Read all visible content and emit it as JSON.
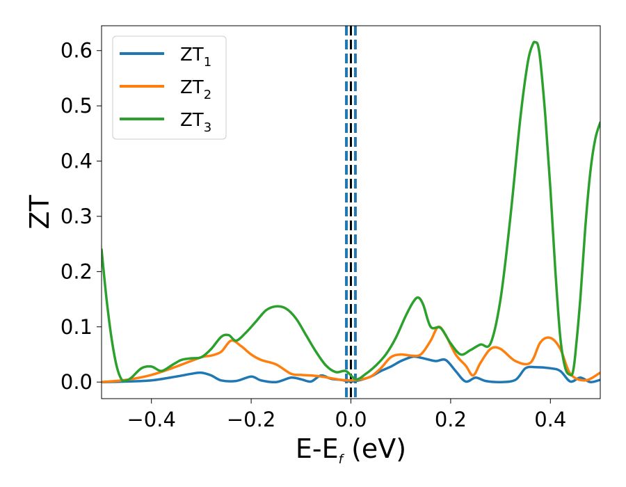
{
  "chart_data": {
    "type": "line",
    "title": "",
    "xlabel": {
      "main": "E-E",
      "sub": "f",
      "unit": " (eV)"
    },
    "ylabel": "ZT",
    "xlim": [
      -0.5,
      0.5
    ],
    "ylim": [
      -0.03,
      0.645
    ],
    "xticks": [
      -0.4,
      -0.2,
      0.0,
      0.2,
      0.4
    ],
    "xtick_labels": [
      "−0.4",
      "−0.2",
      "0.0",
      "0.2",
      "0.4"
    ],
    "yticks": [
      0.0,
      0.1,
      0.2,
      0.3,
      0.4,
      0.5,
      0.6
    ],
    "ytick_labels": [
      "0.0",
      "0.1",
      "0.2",
      "0.3",
      "0.4",
      "0.5",
      "0.6"
    ],
    "legend_position": "top-left",
    "vlines": [
      {
        "x": -0.009,
        "color": "#1f77b4",
        "style": "dashed"
      },
      {
        "x": 0.0,
        "color": "#000000",
        "style": "dashed"
      },
      {
        "x": 0.009,
        "color": "#1f77b4",
        "style": "dashed"
      }
    ],
    "series": [
      {
        "name": "ZT",
        "sub": "1",
        "color": "#1f77b4",
        "x": [
          -0.5,
          -0.45,
          -0.4,
          -0.35,
          -0.32,
          -0.3,
          -0.28,
          -0.26,
          -0.23,
          -0.2,
          -0.18,
          -0.15,
          -0.12,
          -0.1,
          -0.08,
          -0.06,
          -0.04,
          -0.02,
          0.0,
          0.02,
          0.04,
          0.06,
          0.08,
          0.1,
          0.12,
          0.13,
          0.15,
          0.17,
          0.19,
          0.21,
          0.23,
          0.25,
          0.27,
          0.3,
          0.33,
          0.35,
          0.37,
          0.4,
          0.42,
          0.44,
          0.46,
          0.48,
          0.5
        ],
        "y": [
          0.0,
          0.001,
          0.003,
          0.01,
          0.015,
          0.017,
          0.012,
          0.003,
          0.002,
          0.01,
          0.003,
          0.0,
          0.008,
          0.005,
          0.001,
          0.012,
          0.006,
          0.004,
          0.001,
          0.004,
          0.01,
          0.02,
          0.028,
          0.038,
          0.045,
          0.046,
          0.042,
          0.038,
          0.04,
          0.02,
          0.001,
          0.008,
          0.002,
          0.0,
          0.004,
          0.025,
          0.027,
          0.025,
          0.02,
          0.001,
          0.008,
          0.0,
          0.004
        ]
      },
      {
        "name": "ZT",
        "sub": "2",
        "color": "#ff7f0e",
        "x": [
          -0.5,
          -0.45,
          -0.4,
          -0.35,
          -0.3,
          -0.28,
          -0.26,
          -0.24,
          -0.22,
          -0.2,
          -0.18,
          -0.15,
          -0.12,
          -0.1,
          -0.08,
          -0.06,
          -0.04,
          -0.02,
          0.0,
          0.02,
          0.04,
          0.06,
          0.08,
          0.1,
          0.12,
          0.14,
          0.16,
          0.175,
          0.19,
          0.21,
          0.23,
          0.245,
          0.26,
          0.28,
          0.3,
          0.33,
          0.36,
          0.38,
          0.4,
          0.42,
          0.44,
          0.47,
          0.5
        ],
        "y": [
          0.0,
          0.004,
          0.013,
          0.028,
          0.045,
          0.048,
          0.055,
          0.075,
          0.065,
          0.05,
          0.04,
          0.032,
          0.015,
          0.013,
          0.012,
          0.01,
          0.007,
          0.004,
          0.003,
          0.005,
          0.01,
          0.025,
          0.045,
          0.05,
          0.048,
          0.05,
          0.075,
          0.1,
          0.085,
          0.05,
          0.03,
          0.012,
          0.035,
          0.06,
          0.06,
          0.038,
          0.035,
          0.072,
          0.08,
          0.06,
          0.015,
          0.003,
          0.017
        ]
      },
      {
        "name": "ZT",
        "sub": "3",
        "color": "#2ca02c",
        "x": [
          -0.5,
          -0.49,
          -0.48,
          -0.47,
          -0.46,
          -0.45,
          -0.44,
          -0.42,
          -0.4,
          -0.38,
          -0.36,
          -0.34,
          -0.32,
          -0.3,
          -0.28,
          -0.26,
          -0.245,
          -0.23,
          -0.21,
          -0.19,
          -0.17,
          -0.15,
          -0.13,
          -0.11,
          -0.09,
          -0.07,
          -0.05,
          -0.03,
          -0.01,
          0.01,
          0.03,
          0.05,
          0.07,
          0.09,
          0.11,
          0.125,
          0.135,
          0.145,
          0.16,
          0.18,
          0.2,
          0.22,
          0.24,
          0.26,
          0.28,
          0.3,
          0.32,
          0.34,
          0.355,
          0.365,
          0.37,
          0.375,
          0.38,
          0.39,
          0.4,
          0.41,
          0.42,
          0.43,
          0.44,
          0.445,
          0.45,
          0.46,
          0.47,
          0.48,
          0.49,
          0.5
        ],
        "y": [
          0.24,
          0.15,
          0.08,
          0.03,
          0.005,
          0.003,
          0.008,
          0.025,
          0.028,
          0.02,
          0.03,
          0.04,
          0.043,
          0.045,
          0.06,
          0.082,
          0.085,
          0.075,
          0.09,
          0.11,
          0.13,
          0.137,
          0.133,
          0.115,
          0.085,
          0.055,
          0.03,
          0.018,
          0.02,
          0.005,
          0.015,
          0.03,
          0.05,
          0.08,
          0.12,
          0.145,
          0.153,
          0.14,
          0.1,
          0.098,
          0.07,
          0.05,
          0.058,
          0.068,
          0.07,
          0.15,
          0.3,
          0.48,
          0.58,
          0.612,
          0.615,
          0.61,
          0.58,
          0.48,
          0.35,
          0.2,
          0.08,
          0.025,
          0.013,
          0.018,
          0.05,
          0.15,
          0.28,
          0.38,
          0.44,
          0.47
        ]
      }
    ]
  }
}
